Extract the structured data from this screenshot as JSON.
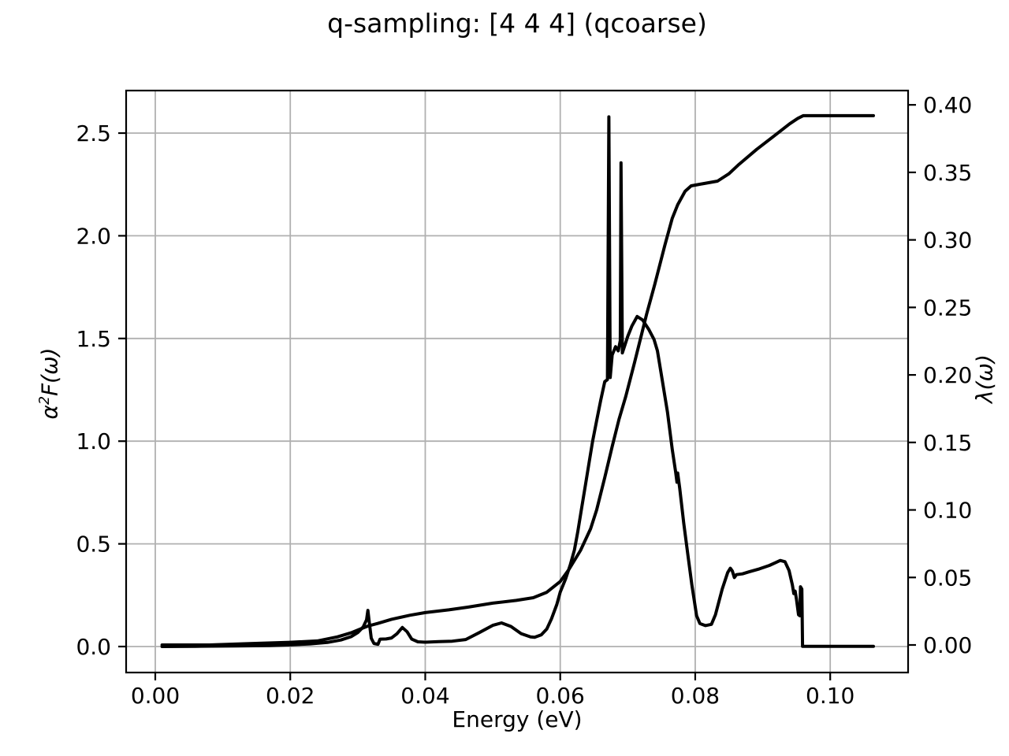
{
  "title": "q-sampling: [4 4 4] (qcoarse)",
  "chart_data": {
    "type": "line",
    "title": "q-sampling: [4 4 4] (qcoarse)",
    "xlabel": "Energy (eV)",
    "ylabel_left": "α²F(ω)",
    "ylabel_right": "λ(ω)",
    "grid": true,
    "legend": "none",
    "colors": {
      "line": "#000000",
      "grid": "#b0b0b0",
      "spine": "#000000",
      "text": "#000000",
      "background": "#ffffff"
    },
    "xlim": [
      -0.00432,
      0.11154
    ],
    "ylim_left": [
      -0.1265,
      2.7071
    ],
    "ylim_right": [
      -0.02041,
      0.41059
    ],
    "x_ticks": {
      "values": [
        0.0,
        0.02,
        0.04,
        0.06,
        0.08,
        0.1
      ],
      "labels": [
        "0.00",
        "0.02",
        "0.04",
        "0.06",
        "0.08",
        "0.10"
      ]
    },
    "y_ticks_left": {
      "values": [
        0.0,
        0.5,
        1.0,
        1.5,
        2.0,
        2.5
      ],
      "labels": [
        "0.0",
        "0.5",
        "1.0",
        "1.5",
        "2.0",
        "2.5"
      ]
    },
    "y_ticks_right": {
      "values": [
        0.0,
        0.05,
        0.1,
        0.15,
        0.2,
        0.25,
        0.3,
        0.35,
        0.4
      ],
      "labels": [
        "0.00",
        "0.05",
        "0.10",
        "0.15",
        "0.20",
        "0.25",
        "0.30",
        "0.35",
        "0.40"
      ]
    },
    "series": [
      {
        "name": "alpha2F",
        "axis": "left",
        "points": [
          [
            0.001,
            0.0
          ],
          [
            0.006,
            0.001
          ],
          [
            0.012,
            0.003
          ],
          [
            0.017,
            0.005
          ],
          [
            0.02,
            0.008
          ],
          [
            0.023,
            0.013
          ],
          [
            0.0255,
            0.02
          ],
          [
            0.0275,
            0.032
          ],
          [
            0.029,
            0.048
          ],
          [
            0.03,
            0.068
          ],
          [
            0.0308,
            0.095
          ],
          [
            0.0313,
            0.13
          ],
          [
            0.0315,
            0.176
          ],
          [
            0.0317,
            0.12
          ],
          [
            0.032,
            0.04
          ],
          [
            0.0324,
            0.015
          ],
          [
            0.033,
            0.011
          ],
          [
            0.0333,
            0.036
          ],
          [
            0.0342,
            0.037
          ],
          [
            0.035,
            0.042
          ],
          [
            0.0358,
            0.062
          ],
          [
            0.0366,
            0.093
          ],
          [
            0.0373,
            0.072
          ],
          [
            0.038,
            0.036
          ],
          [
            0.0389,
            0.023
          ],
          [
            0.04,
            0.021
          ],
          [
            0.042,
            0.024
          ],
          [
            0.044,
            0.026
          ],
          [
            0.046,
            0.034
          ],
          [
            0.048,
            0.068
          ],
          [
            0.05,
            0.103
          ],
          [
            0.0513,
            0.115
          ],
          [
            0.0527,
            0.098
          ],
          [
            0.0542,
            0.063
          ],
          [
            0.0556,
            0.047
          ],
          [
            0.0562,
            0.045
          ],
          [
            0.0572,
            0.057
          ],
          [
            0.058,
            0.085
          ],
          [
            0.0587,
            0.135
          ],
          [
            0.0595,
            0.205
          ],
          [
            0.06,
            0.265
          ],
          [
            0.0608,
            0.33
          ],
          [
            0.0615,
            0.4
          ],
          [
            0.0621,
            0.47
          ],
          [
            0.0626,
            0.56
          ],
          [
            0.0632,
            0.68
          ],
          [
            0.0637,
            0.78
          ],
          [
            0.0643,
            0.9
          ],
          [
            0.0648,
            1.0
          ],
          [
            0.0654,
            1.1
          ],
          [
            0.066,
            1.2
          ],
          [
            0.0666,
            1.29
          ],
          [
            0.067,
            1.3
          ],
          [
            0.0672,
            2.579
          ],
          [
            0.0674,
            1.31
          ],
          [
            0.0677,
            1.42
          ],
          [
            0.0682,
            1.46
          ],
          [
            0.0686,
            1.44
          ],
          [
            0.0689,
            1.49
          ],
          [
            0.069,
            2.355
          ],
          [
            0.0692,
            1.43
          ],
          [
            0.0695,
            1.46
          ],
          [
            0.07,
            1.51
          ],
          [
            0.0706,
            1.56
          ],
          [
            0.0714,
            1.607
          ],
          [
            0.0722,
            1.59
          ],
          [
            0.0731,
            1.545
          ],
          [
            0.0739,
            1.495
          ],
          [
            0.0744,
            1.44
          ],
          [
            0.0751,
            1.3
          ],
          [
            0.0759,
            1.14
          ],
          [
            0.0766,
            0.96
          ],
          [
            0.0771,
            0.85
          ],
          [
            0.0773,
            0.8
          ],
          [
            0.0774,
            0.845
          ],
          [
            0.0777,
            0.77
          ],
          [
            0.0783,
            0.6
          ],
          [
            0.0789,
            0.45
          ],
          [
            0.0795,
            0.3
          ],
          [
            0.0802,
            0.15
          ],
          [
            0.0807,
            0.112
          ],
          [
            0.0815,
            0.102
          ],
          [
            0.0824,
            0.108
          ],
          [
            0.083,
            0.155
          ],
          [
            0.084,
            0.28
          ],
          [
            0.0848,
            0.36
          ],
          [
            0.0852,
            0.381
          ],
          [
            0.0855,
            0.368
          ],
          [
            0.0858,
            0.336
          ],
          [
            0.0861,
            0.35
          ],
          [
            0.087,
            0.354
          ],
          [
            0.088,
            0.364
          ],
          [
            0.0895,
            0.378
          ],
          [
            0.091,
            0.395
          ],
          [
            0.092,
            0.41
          ],
          [
            0.0926,
            0.419
          ],
          [
            0.0933,
            0.413
          ],
          [
            0.0939,
            0.37
          ],
          [
            0.0944,
            0.3
          ],
          [
            0.0946,
            0.258
          ],
          [
            0.0948,
            0.27
          ],
          [
            0.095,
            0.23
          ],
          [
            0.0953,
            0.155
          ],
          [
            0.0955,
            0.15
          ],
          [
            0.0956,
            0.291
          ],
          [
            0.0958,
            0.28
          ],
          [
            0.0959,
            0.001
          ],
          [
            0.098,
            0.001
          ],
          [
            0.1064,
            0.001
          ]
        ]
      },
      {
        "name": "lambda",
        "axis": "right",
        "points": [
          [
            0.001,
            0.0
          ],
          [
            0.008,
            0.0
          ],
          [
            0.014,
            0.001
          ],
          [
            0.02,
            0.002
          ],
          [
            0.024,
            0.003
          ],
          [
            0.027,
            0.006
          ],
          [
            0.029,
            0.009
          ],
          [
            0.0305,
            0.012
          ],
          [
            0.0315,
            0.014
          ],
          [
            0.033,
            0.016
          ],
          [
            0.035,
            0.019
          ],
          [
            0.0377,
            0.022
          ],
          [
            0.04,
            0.024
          ],
          [
            0.0435,
            0.026
          ],
          [
            0.0463,
            0.028
          ],
          [
            0.05,
            0.031
          ],
          [
            0.0535,
            0.033
          ],
          [
            0.056,
            0.035
          ],
          [
            0.058,
            0.039
          ],
          [
            0.06,
            0.047
          ],
          [
            0.0613,
            0.056
          ],
          [
            0.063,
            0.07
          ],
          [
            0.0645,
            0.086
          ],
          [
            0.0654,
            0.1
          ],
          [
            0.0666,
            0.124
          ],
          [
            0.0677,
            0.147
          ],
          [
            0.0687,
            0.167
          ],
          [
            0.0697,
            0.184
          ],
          [
            0.071,
            0.209
          ],
          [
            0.0728,
            0.245
          ],
          [
            0.074,
            0.267
          ],
          [
            0.0755,
            0.296
          ],
          [
            0.0766,
            0.316
          ],
          [
            0.0774,
            0.326
          ],
          [
            0.0785,
            0.336
          ],
          [
            0.0794,
            0.34
          ],
          [
            0.081,
            0.3415
          ],
          [
            0.0833,
            0.3435
          ],
          [
            0.085,
            0.349
          ],
          [
            0.0865,
            0.356
          ],
          [
            0.0891,
            0.367
          ],
          [
            0.0917,
            0.377
          ],
          [
            0.094,
            0.386
          ],
          [
            0.0952,
            0.39
          ],
          [
            0.096,
            0.392
          ],
          [
            0.098,
            0.392
          ],
          [
            0.1064,
            0.392
          ]
        ]
      }
    ]
  }
}
